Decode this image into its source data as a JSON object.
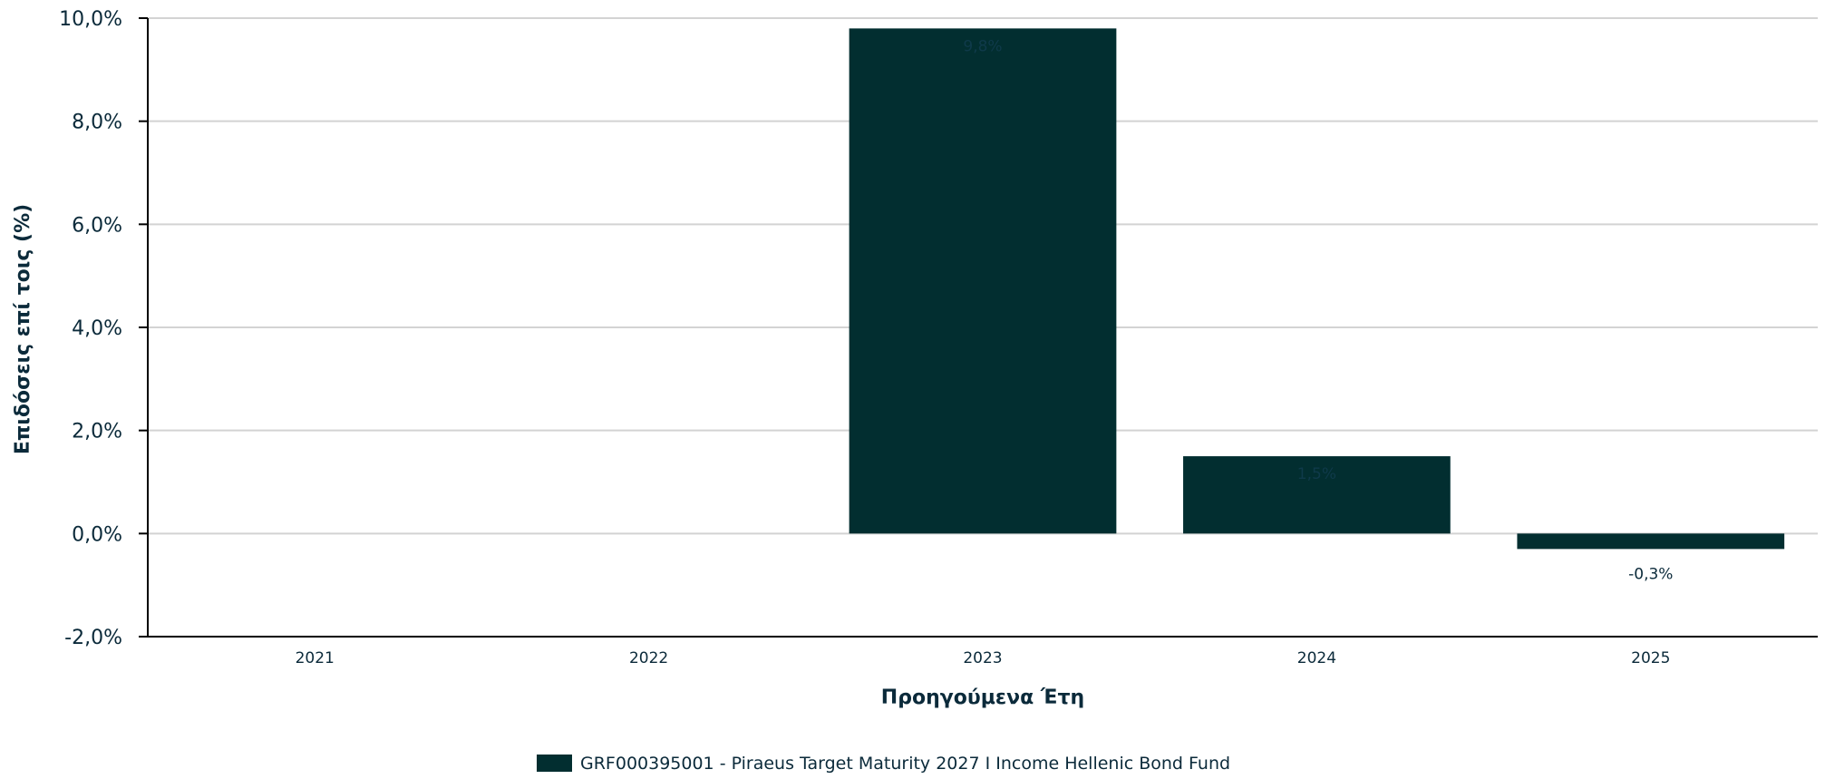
{
  "chart_data": {
    "type": "bar",
    "title": "",
    "xlabel": "Προηγούμενα Έτη",
    "ylabel": "Επιδόσεις επί τοις (%)",
    "categories": [
      "2021",
      "2022",
      "2023",
      "2024",
      "2025"
    ],
    "series": [
      {
        "name": "GRF000395001 - Piraeus Target Maturity 2027 I Income Hellenic Bond Fund",
        "values": [
          null,
          null,
          9.8,
          1.5,
          -0.3
        ],
        "labels": [
          "",
          "",
          "9,8%",
          "1,5%",
          "-0,3%"
        ],
        "color": "#022e30"
      }
    ],
    "ylim": [
      -2.0,
      10.0
    ],
    "yticks": [
      -2.0,
      0.0,
      2.0,
      4.0,
      6.0,
      8.0,
      10.0
    ],
    "ytick_labels": [
      "-2,0%",
      "0,0%",
      "2,0%",
      "4,0%",
      "6,0%",
      "8,0%",
      "10,0%"
    ],
    "grid": true,
    "legend_position": "bottom"
  },
  "colors": {
    "bar": "#022e30",
    "grid": "#d3d3d3",
    "axis": "#000000",
    "text": "#0b2a3a"
  }
}
